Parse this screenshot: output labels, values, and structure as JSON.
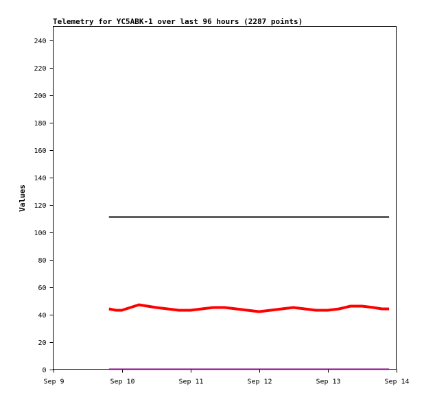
{
  "chart_data": {
    "type": "line",
    "title": "Telemetry for YC5ABK-1 over last 96 hours (2287 points)",
    "xlabel": "",
    "ylabel": "Values",
    "xlim": [
      "Sep 9",
      "Sep 14"
    ],
    "ylim": [
      0,
      250
    ],
    "x_ticks": [
      "Sep 9",
      "Sep 10",
      "Sep 11",
      "Sep 12",
      "Sep 13",
      "Sep 14"
    ],
    "y_ticks": [
      0,
      20,
      40,
      60,
      80,
      100,
      120,
      140,
      160,
      180,
      200,
      220,
      240
    ],
    "grid": false,
    "legend": "none",
    "series": [
      {
        "color": "#000000",
        "x": [
          "Sep 9 19:30",
          "Sep 13 21:30"
        ],
        "y": [
          111,
          111
        ]
      },
      {
        "color": "#ff0000",
        "x": [
          "Sep 9 19:30",
          "Sep 9 22:00",
          "Sep 10 00:00",
          "Sep 10 03:00",
          "Sep 10 06:00",
          "Sep 10 09:00",
          "Sep 10 12:00",
          "Sep 10 16:00",
          "Sep 10 20:00",
          "Sep 11 00:00",
          "Sep 11 04:00",
          "Sep 11 08:00",
          "Sep 11 12:00",
          "Sep 11 16:00",
          "Sep 11 20:00",
          "Sep 12 00:00",
          "Sep 12 04:00",
          "Sep 12 08:00",
          "Sep 12 12:00",
          "Sep 12 16:00",
          "Sep 12 20:00",
          "Sep 13 00:00",
          "Sep 13 04:00",
          "Sep 13 08:00",
          "Sep 13 12:00",
          "Sep 13 16:00",
          "Sep 13 19:00",
          "Sep 13 21:30"
        ],
        "y": [
          44,
          43,
          43,
          45,
          47,
          46,
          45,
          44,
          43,
          43,
          44,
          45,
          45,
          44,
          43,
          42,
          43,
          44,
          45,
          44,
          43,
          43,
          44,
          46,
          46,
          45,
          44,
          44
        ]
      },
      {
        "color": "#800080",
        "x": [
          "Sep 9 19:30",
          "Sep 13 21:30"
        ],
        "y": [
          0,
          0
        ]
      }
    ]
  }
}
